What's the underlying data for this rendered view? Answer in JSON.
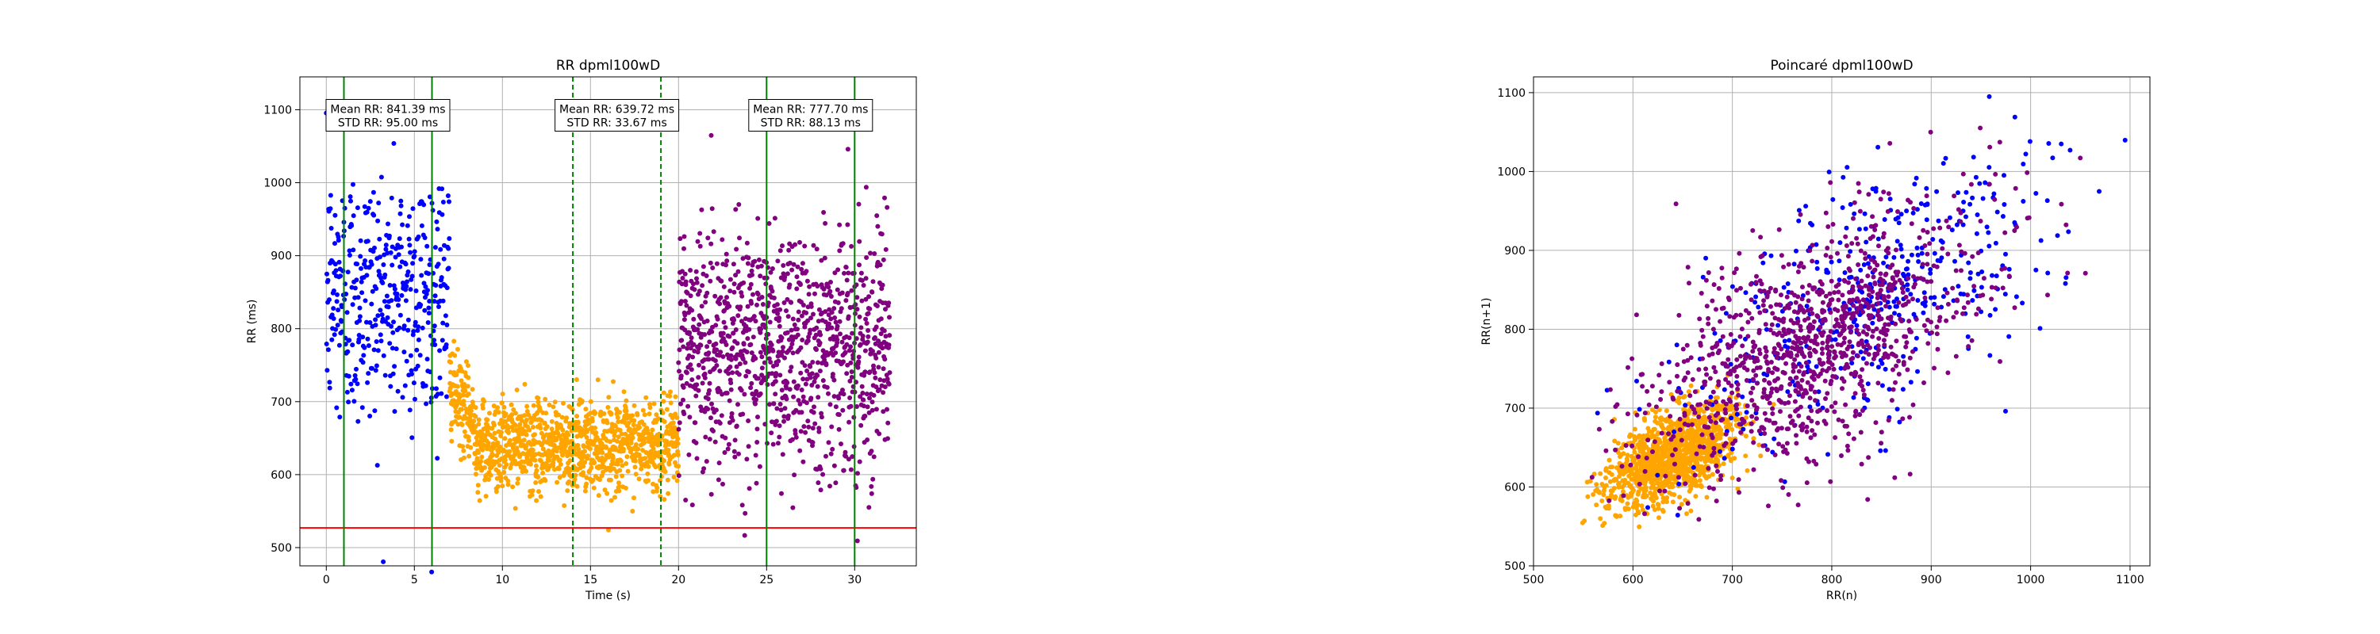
{
  "chart_data": [
    {
      "type": "scatter",
      "title": "RR dpml100wD",
      "xlabel": "Time (s)",
      "ylabel": "RR (ms)",
      "xlim": [
        -1.5,
        33.5
      ],
      "ylim": [
        475,
        1145
      ],
      "xticks": [
        0,
        5,
        10,
        15,
        20,
        25,
        30
      ],
      "yticks": [
        500,
        600,
        700,
        800,
        900,
        1000,
        1100
      ],
      "grid": true,
      "series": [
        {
          "color": "#0000ff",
          "x_range": [
            0,
            7
          ],
          "y_center": 845,
          "y_spread": 95,
          "count": 420
        },
        {
          "color": "#ffa500",
          "x_range": [
            7,
            20
          ],
          "y_center": 640,
          "y_spread": 34,
          "count": 1200
        },
        {
          "color": "#800080",
          "x_range": [
            20,
            32
          ],
          "y_center": 778,
          "y_spread": 88,
          "count": 1080
        }
      ],
      "threshold_line": {
        "y": 527,
        "color": "#ff0000"
      },
      "vlines": [
        {
          "x": 1,
          "style": "solid",
          "color": "#008000"
        },
        {
          "x": 6,
          "style": "solid",
          "color": "#008000"
        },
        {
          "x": 14,
          "style": "dashed",
          "color": "#008000"
        },
        {
          "x": 19,
          "style": "dashed",
          "color": "#008000"
        },
        {
          "x": 25,
          "style": "solid",
          "color": "#008000"
        },
        {
          "x": 30,
          "style": "solid",
          "color": "#008000"
        }
      ],
      "annotations": [
        {
          "x": 3.5,
          "y": 1088,
          "line1": "Mean RR: 841.39 ms",
          "line2": "STD RR: 95.00 ms"
        },
        {
          "x": 16.5,
          "y": 1088,
          "line1": "Mean RR: 639.72 ms",
          "line2": "STD RR: 33.67 ms"
        },
        {
          "x": 27.5,
          "y": 1088,
          "line1": "Mean RR: 777.70 ms",
          "line2": "STD RR: 88.13 ms"
        }
      ]
    },
    {
      "type": "scatter",
      "title": "Poincaré dpml100wD",
      "xlabel": "RR(n)",
      "ylabel": "RR(n+1)",
      "xlim": [
        500,
        1120
      ],
      "ylim": [
        500,
        1120
      ],
      "xticks": [
        500,
        600,
        700,
        800,
        900,
        1000,
        1100
      ],
      "yticks": [
        500,
        600,
        700,
        800,
        900,
        1000,
        1100
      ],
      "grid": true,
      "series": [
        {
          "color": "#ffa500",
          "center": 640,
          "spread": 34,
          "count": 1200
        },
        {
          "color": "#0000ff",
          "center": 845,
          "spread": 95,
          "count": 420
        },
        {
          "color": "#800080",
          "center": 778,
          "spread": 88,
          "count": 1080
        }
      ]
    }
  ]
}
